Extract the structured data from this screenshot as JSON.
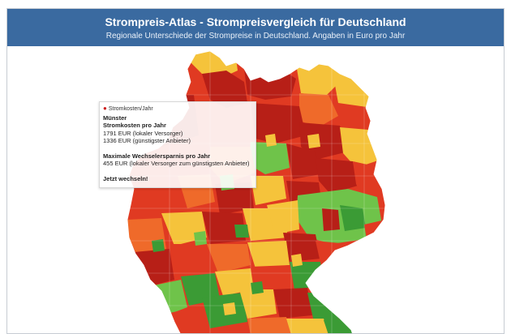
{
  "header": {
    "title": "Strompreis-Atlas - Strompreisvergleich für Deutschland",
    "subtitle": "Regionale Unterschiede der Strompreise in Deutschland. Angaben in Euro pro Jahr"
  },
  "colors": {
    "header_bg": "#3a6aa0",
    "dark_red": "#b71f17",
    "red": "#e03a22",
    "orange": "#ef6a2a",
    "yellow": "#f5c33b",
    "light_green": "#6fc34a",
    "green": "#3b9b35"
  },
  "tooltip": {
    "series_label": "Stromkosten/Jahr",
    "city": "Münster",
    "costs_heading": "Stromkosten pro Jahr",
    "local_provider": "1791 EUR (lokaler Versorger)",
    "cheapest_provider": "1336 EUR (günstigster Anbieter)",
    "savings_heading": "Maximale Wechselersparnis pro Jahr",
    "savings_value": "455 EUR (lokaler Versorger zum günstigsten Anbieter)",
    "cta": "Jetzt wechseln!"
  }
}
